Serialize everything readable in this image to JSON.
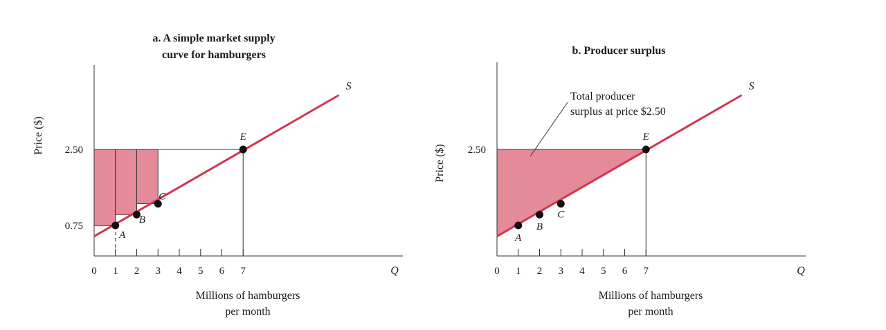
{
  "chart_data": [
    {
      "type": "line",
      "title_lines": [
        "a. A simple market supply",
        "curve for hamburgers"
      ],
      "xlabel_lines": [
        "Millions of hamburgers",
        "per month"
      ],
      "ylabel": "Price ($)",
      "x_axis_end_label": "Q",
      "xticks": [
        "0",
        "1",
        "2",
        "3",
        "4",
        "5",
        "6",
        "7"
      ],
      "yticks": [
        {
          "value": 2.5,
          "label": "2.50"
        },
        {
          "value": 0.75,
          "label": "0.75"
        }
      ],
      "xlim": [
        0,
        14
      ],
      "ylim": [
        -0.7,
        4.4
      ],
      "series": [
        {
          "name": "S",
          "x": [
            0,
            11.5
          ],
          "y": [
            0.5,
            3.75
          ],
          "color": "#d1344f"
        }
      ],
      "points": [
        {
          "label": "A",
          "x": 1,
          "y": 0.75
        },
        {
          "label": "B",
          "x": 2,
          "y": 1.0
        },
        {
          "label": "C",
          "x": 3,
          "y": 1.25
        },
        {
          "label": "E",
          "x": 7,
          "y": 2.5
        }
      ],
      "shaded_bars": [
        {
          "x0": 0,
          "x1": 1,
          "y0": 0.75,
          "y1": 2.5
        },
        {
          "x0": 1,
          "x1": 2,
          "y0": 1.0,
          "y1": 2.5
        },
        {
          "x0": 2,
          "x1": 3,
          "y0": 1.25,
          "y1": 2.5
        }
      ],
      "shade_color": "#e58a99"
    },
    {
      "type": "area",
      "title_lines": [
        "b. Producer surplus"
      ],
      "xlabel_lines": [
        "Millions of hamburgers",
        "per month"
      ],
      "ylabel": "Price ($)",
      "x_axis_end_label": "Q",
      "xticks": [
        "0",
        "1",
        "2",
        "3",
        "4",
        "5",
        "6",
        "7"
      ],
      "yticks": [
        {
          "value": 2.5,
          "label": "2.50"
        }
      ],
      "xlim": [
        0,
        14
      ],
      "ylim": [
        -0.7,
        4.4
      ],
      "series": [
        {
          "name": "S",
          "x": [
            0,
            11.5
          ],
          "y": [
            0.5,
            3.75
          ],
          "color": "#d1344f"
        }
      ],
      "points": [
        {
          "label": "A",
          "x": 1,
          "y": 0.75
        },
        {
          "label": "B",
          "x": 2,
          "y": 1.0
        },
        {
          "label": "C",
          "x": 3,
          "y": 1.25
        },
        {
          "label": "E",
          "x": 7,
          "y": 2.5
        }
      ],
      "surplus_region": {
        "x": [
          0,
          7,
          0
        ],
        "y": [
          0.5,
          2.5,
          2.5
        ]
      },
      "annotation_lines": [
        "Total producer",
        "surplus at price $2.50"
      ],
      "shade_color": "#e58a99"
    }
  ]
}
